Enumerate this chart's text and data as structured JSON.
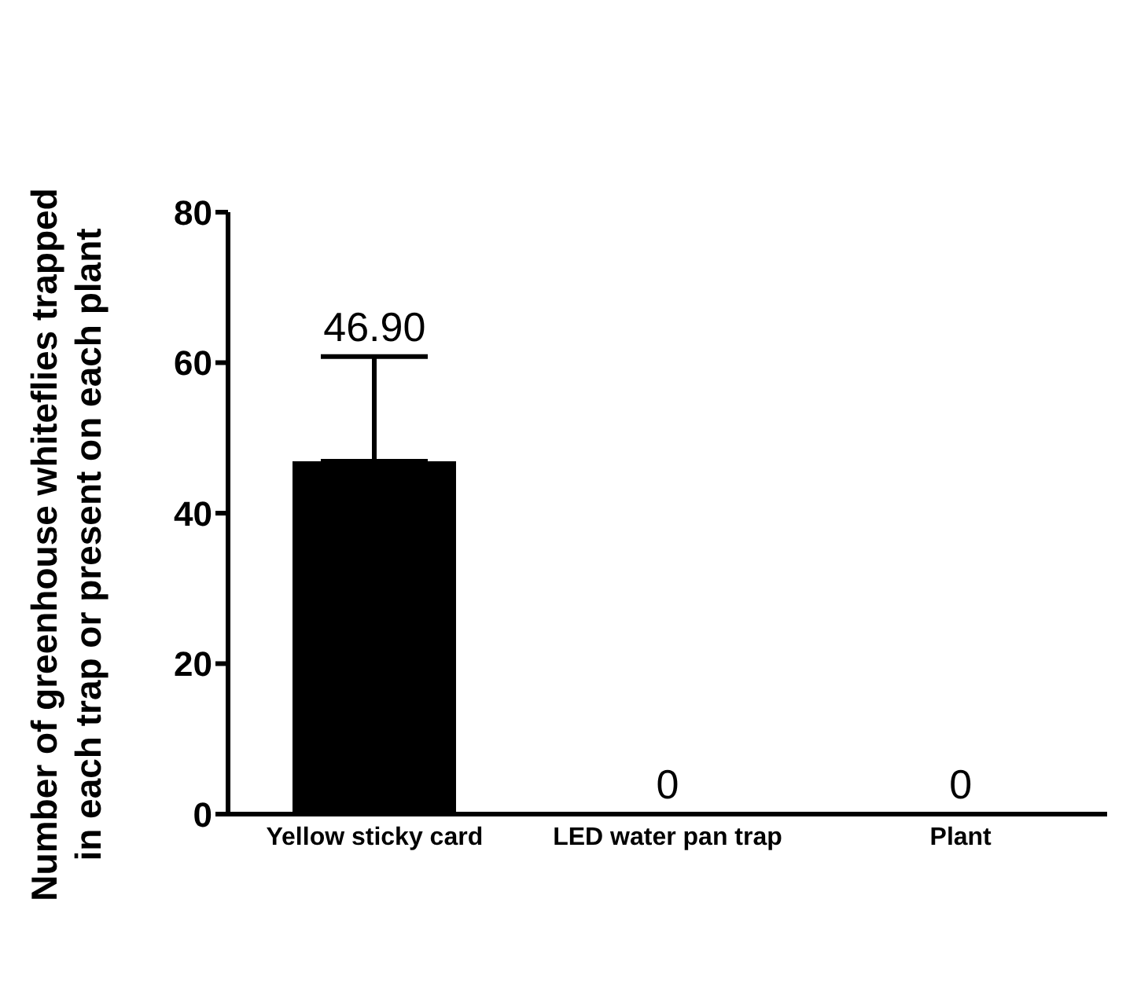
{
  "chart_data": {
    "type": "bar",
    "ylabel": "Number of greenhouse whiteflies trapped\nin each trap or present on each plant",
    "categories": [
      "Yellow sticky card",
      "LED water pan trap",
      "Plant"
    ],
    "values": [
      46.9,
      0,
      0
    ],
    "errors": [
      [
        46.9,
        60.8
      ],
      null,
      null
    ],
    "value_labels": [
      "46.90",
      "0",
      "0"
    ],
    "color": "#000000",
    "ylim": [
      0,
      80
    ],
    "yticks": [
      0,
      20,
      40,
      60,
      80
    ],
    "grid": false,
    "legend": false
  }
}
